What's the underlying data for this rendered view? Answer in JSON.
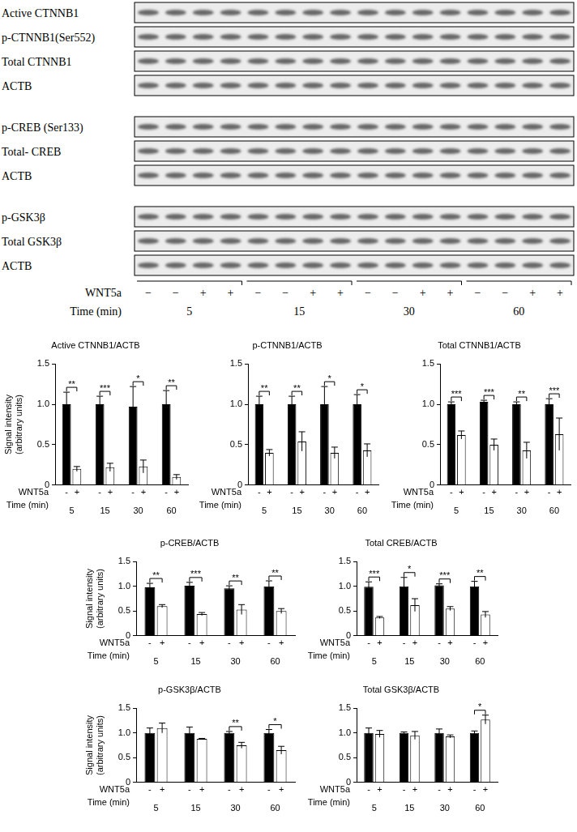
{
  "blot": {
    "rows": [
      [
        "Active CTNNB1",
        "p-CTNNB1(Ser552)",
        "Total CTNNB1",
        "ACTB"
      ],
      [
        "p-CREB (Ser133)",
        "Total- CREB",
        "ACTB"
      ],
      [
        "p-GSK3β",
        "Total GSK3β",
        "ACTB"
      ]
    ],
    "treatment_label": "WNT5a",
    "treatment": [
      "−",
      "−",
      "+",
      "+",
      "−",
      "−",
      "+",
      "+",
      "−",
      "−",
      "+",
      "+",
      "−",
      "−",
      "+",
      "+"
    ],
    "time_label": "Time (min)",
    "times": [
      "5",
      "15",
      "30",
      "60"
    ]
  },
  "chart_data": [
    {
      "type": "bar",
      "title": "Active CTNNB1/ACTB",
      "ylabel": [
        "Signal intensity",
        "(arbitrary units)"
      ],
      "categories": [
        "5",
        "15",
        "30",
        "60"
      ],
      "x_row_labels": [
        "WNT5a",
        "Time (min)"
      ],
      "series": [
        {
          "name": "-",
          "color": "#000000",
          "values": [
            1.0,
            1.0,
            0.97,
            1.0
          ],
          "errors": [
            0.15,
            0.1,
            0.25,
            0.17
          ]
        },
        {
          "name": "+",
          "color": "#ffffff",
          "values": [
            0.2,
            0.22,
            0.23,
            0.1
          ],
          "errors": [
            0.03,
            0.05,
            0.08,
            0.03
          ]
        }
      ],
      "significance": [
        "**",
        "***",
        "*",
        "**"
      ],
      "ylim": [
        0,
        1.5
      ],
      "yticks": [
        0,
        0.5,
        {
          "value": 1,
          "label": "1.0"
        },
        1.5
      ],
      "grid": false
    },
    {
      "type": "bar",
      "title": "p-CTNNB1/ACTB",
      "categories": [
        "5",
        "15",
        "30",
        "60"
      ],
      "x_row_labels": [
        "WNT5a",
        "Time (min)"
      ],
      "series": [
        {
          "name": "-",
          "color": "#000000",
          "values": [
            1.0,
            1.0,
            1.0,
            1.0
          ],
          "errors": [
            0.1,
            0.1,
            0.22,
            0.12
          ]
        },
        {
          "name": "+",
          "color": "#ffffff",
          "values": [
            0.4,
            0.54,
            0.4,
            0.43
          ],
          "errors": [
            0.04,
            0.12,
            0.07,
            0.08
          ]
        }
      ],
      "significance": [
        "**",
        "**",
        "*",
        "*"
      ],
      "ylim": [
        0,
        1.5
      ],
      "yticks": [
        0,
        0.5,
        {
          "value": 1,
          "label": "1.0"
        },
        1.5
      ],
      "grid": false
    },
    {
      "type": "bar",
      "title": "Total CTNNB1/ACTB",
      "categories": [
        "5",
        "15",
        "30",
        "60"
      ],
      "x_row_labels": [
        "WNT5a",
        "Time (min)"
      ],
      "series": [
        {
          "name": "-",
          "color": "#000000",
          "values": [
            1.0,
            1.03,
            1.0,
            1.0
          ],
          "errors": [
            0.03,
            0.02,
            0.03,
            0.07
          ]
        },
        {
          "name": "+",
          "color": "#ffffff",
          "values": [
            0.62,
            0.5,
            0.43,
            0.63
          ],
          "errors": [
            0.05,
            0.07,
            0.1,
            0.2
          ]
        }
      ],
      "significance": [
        "***",
        "***",
        "**",
        "***"
      ],
      "ylim": [
        0,
        1.5
      ],
      "yticks": [
        0,
        0.5,
        {
          "value": 1,
          "label": "1.0"
        },
        1.5
      ],
      "grid": false
    },
    {
      "type": "bar",
      "title": "p-CREB/ACTB",
      "ylabel": [
        "Signal intensity",
        "(arbitrary units)"
      ],
      "categories": [
        "5",
        "15",
        "30",
        "60"
      ],
      "x_row_labels": [
        "WNT5a",
        "Time (min)"
      ],
      "series": [
        {
          "name": "-",
          "color": "#000000",
          "values": [
            0.98,
            1.01,
            0.96,
            1.0
          ],
          "errors": [
            0.08,
            0.07,
            0.05,
            0.11
          ]
        },
        {
          "name": "+",
          "color": "#ffffff",
          "values": [
            0.6,
            0.44,
            0.53,
            0.5
          ],
          "errors": [
            0.03,
            0.03,
            0.1,
            0.05
          ]
        }
      ],
      "significance": [
        "**",
        "***",
        "**",
        "**"
      ],
      "ylim": [
        0,
        1.5
      ],
      "yticks": [
        0,
        0.5,
        {
          "value": 1,
          "label": "1.0"
        },
        1.5
      ],
      "grid": false
    },
    {
      "type": "bar",
      "title": "Total CREB/ACTB",
      "categories": [
        "5",
        "15",
        "30",
        "60"
      ],
      "x_row_labels": [
        "WNT5a",
        "Time (min)"
      ],
      "series": [
        {
          "name": "-",
          "color": "#000000",
          "values": [
            0.99,
            1.0,
            1.02,
            1.0
          ],
          "errors": [
            0.1,
            0.18,
            0.03,
            0.1
          ]
        },
        {
          "name": "+",
          "color": "#ffffff",
          "values": [
            0.37,
            0.62,
            0.55,
            0.43
          ],
          "errors": [
            0.02,
            0.13,
            0.04,
            0.06
          ]
        }
      ],
      "significance": [
        "***",
        "*",
        "***",
        "**"
      ],
      "ylim": [
        0,
        1.5
      ],
      "yticks": [
        0,
        0.5,
        {
          "value": 1,
          "label": "1.0"
        },
        1.5
      ],
      "grid": false
    },
    {
      "type": "bar",
      "title": "p-GSK3β/ACTB",
      "ylabel": [
        "Signal intensity",
        "(arbitrary units)"
      ],
      "categories": [
        "5",
        "15",
        "30",
        "60"
      ],
      "x_row_labels": [
        "WNT5a",
        "Time (min)"
      ],
      "series": [
        {
          "name": "-",
          "color": "#000000",
          "values": [
            1.0,
            1.0,
            1.0,
            1.0
          ],
          "errors": [
            0.1,
            0.12,
            0.03,
            0.07
          ]
        },
        {
          "name": "+",
          "color": "#ffffff",
          "values": [
            1.1,
            0.88,
            0.75,
            0.65
          ],
          "errors": [
            0.1,
            0.01,
            0.06,
            0.08
          ]
        }
      ],
      "significance": [
        null,
        null,
        "**",
        "*"
      ],
      "ylim": [
        0,
        1.5
      ],
      "yticks": [
        0,
        0.5,
        {
          "value": 1,
          "label": "1.0"
        },
        1.5
      ],
      "grid": false
    },
    {
      "type": "bar",
      "title": "Total GSK3β/ACTB",
      "categories": [
        "5",
        "15",
        "30",
        "60"
      ],
      "x_row_labels": [
        "WNT5a",
        "Time (min)"
      ],
      "series": [
        {
          "name": "-",
          "color": "#000000",
          "values": [
            1.0,
            1.0,
            1.0,
            1.0
          ],
          "errors": [
            0.1,
            0.02,
            0.08,
            0.04
          ]
        },
        {
          "name": "+",
          "color": "#ffffff",
          "values": [
            0.98,
            0.95,
            0.93,
            1.27
          ],
          "errors": [
            0.07,
            0.08,
            0.03,
            0.09
          ]
        }
      ],
      "significance": [
        null,
        null,
        null,
        "*"
      ],
      "ylim": [
        0,
        1.5
      ],
      "yticks": [
        0,
        0.5,
        {
          "value": 1,
          "label": "1.0"
        },
        1.5
      ],
      "grid": false
    }
  ]
}
